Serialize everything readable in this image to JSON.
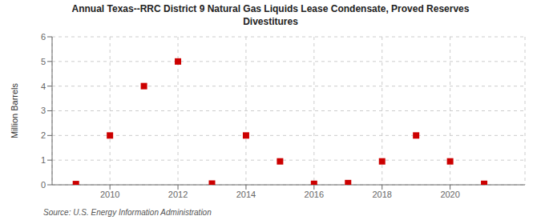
{
  "chart_data": {
    "type": "scatter",
    "title": "Annual Texas--RRC District 9 Natural Gas Liquids Lease Condensate, Proved Reserves\nDivestitures",
    "ylabel": "Million Barrels",
    "source": "Source: U.S. Energy Information Administration",
    "x": [
      2009,
      2010,
      2011,
      2012,
      2013,
      2014,
      2015,
      2016,
      2017,
      2018,
      2019,
      2020,
      2021
    ],
    "values": [
      0.03,
      2.0,
      4.0,
      5.0,
      0.05,
      2.0,
      0.95,
      0.04,
      0.07,
      0.95,
      2.0,
      0.95,
      0.04
    ],
    "color": "#cc0000",
    "marker": "square",
    "xlim": [
      2008.3,
      2022.2
    ],
    "ylim": [
      0,
      6
    ],
    "xticks": [
      2010,
      2012,
      2014,
      2016,
      2018,
      2020
    ],
    "yticks": [
      0,
      1,
      2,
      3,
      4,
      5,
      6
    ],
    "grid": true
  }
}
